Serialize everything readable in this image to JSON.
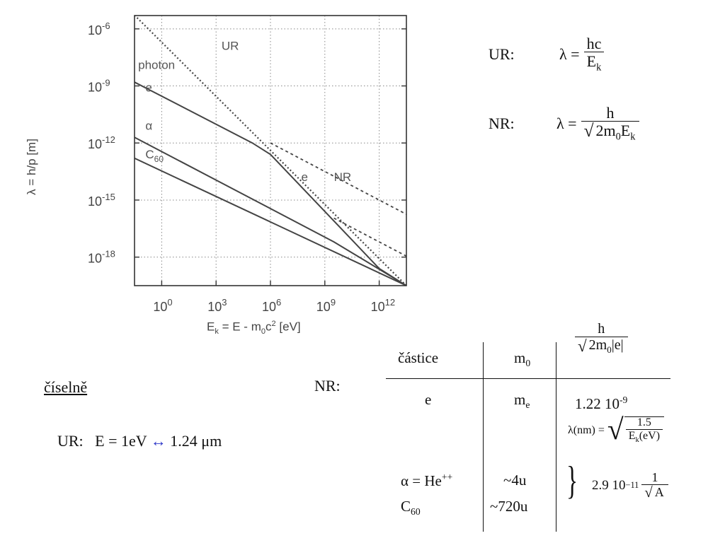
{
  "chart_data": {
    "type": "line",
    "xlabel": "E",
    "xlabel_sub": "k",
    "xlabel_rest": " = E - m",
    "xlabel_sub2": "0",
    "xlabel_tail": "c",
    "xlabel_sup": "2",
    "xlabel_unit": " [eV]",
    "ylabel": "λ = h/p [m]",
    "x_scale": "log",
    "y_scale": "log",
    "xlim_exp": [
      -1.5,
      13.5
    ],
    "ylim_exp": [
      -19.5,
      -5.3
    ],
    "grid": true,
    "x_tick_exponents": [
      "0",
      "3",
      "6",
      "9",
      "12"
    ],
    "x_tick_base": "10",
    "y_tick_exponents": [
      "-6",
      "-9",
      "-12",
      "-15",
      "-18"
    ],
    "y_tick_base": "10",
    "series": [
      {
        "name": "UR",
        "style": "dotted",
        "points": [
          [
            -1.5,
            -5.28
          ],
          [
            13.5,
            -19.5
          ]
        ]
      },
      {
        "name": "e",
        "style": "solid",
        "points": [
          [
            -1.5,
            -8.8
          ],
          [
            5,
            -12.0
          ],
          [
            6,
            -12.6
          ],
          [
            9,
            -15.6
          ],
          [
            12,
            -18.6
          ],
          [
            13.5,
            -19.5
          ]
        ]
      },
      {
        "name": "e NR",
        "style": "dashed",
        "points": [
          [
            6,
            -12.0
          ],
          [
            13.5,
            -15.75
          ]
        ]
      },
      {
        "name": "α",
        "style": "solid",
        "points": [
          [
            -1.5,
            -11.7
          ],
          [
            9.5,
            -17.2
          ],
          [
            13.5,
            -19.5
          ]
        ]
      },
      {
        "name": "α NR",
        "style": "dashed",
        "points": [
          [
            9.5,
            -15.95
          ],
          [
            13.5,
            -17.95
          ]
        ]
      },
      {
        "name": "C60",
        "style": "solid",
        "points": [
          [
            -1.5,
            -12.8
          ],
          [
            13.5,
            -19.5
          ]
        ]
      }
    ],
    "annotations": [
      {
        "text": "UR",
        "x": 3.3,
        "y": -7.1
      },
      {
        "text": "photon",
        "x": -1.3,
        "y": -8.1
      },
      {
        "text": "e",
        "x": -0.9,
        "y": -9.3
      },
      {
        "text": "α",
        "x": -0.9,
        "y": -11.3
      },
      {
        "text": "C",
        "sub": "60",
        "x": -0.9,
        "y": -12.8
      },
      {
        "text": "e",
        "x": 7.7,
        "y": -14.0
      },
      {
        "text": "NR",
        "x": 9.5,
        "y": -14.0
      }
    ]
  },
  "formulas": {
    "ur_label": "UR:",
    "ur_lhs": "λ =",
    "ur_num": "hc",
    "ur_den": "E",
    "ur_den_sub": "k",
    "nr_label": "NR:",
    "nr_lhs": "λ =",
    "nr_num": "h",
    "nr_den_a": "2m",
    "nr_den_sub": "0",
    "nr_den_b": "E",
    "nr_den_sub2": "k"
  },
  "numeric": {
    "heading": "číselně",
    "ur_text": "UR:   E = 1eV",
    "arrow": "↔",
    "value": "1.24 μm",
    "nr_label": "NR:"
  },
  "table": {
    "col1_header": "částice",
    "col2_header": "m",
    "col2_header_sub": "0",
    "col3_num": "h",
    "col3_den_a": "2m",
    "col3_den_sub": "0",
    "col3_den_b": "|e|",
    "row_e_name": "e",
    "row_e_mass": "m",
    "row_e_mass_sub": "e",
    "row_e_value": "1.22 10",
    "row_e_value_sup": "-9",
    "lambda_lhs": "λ(nm) =",
    "lambda_num": "1.5",
    "lambda_den": "E",
    "lambda_den_sub": "k",
    "lambda_den_unit": "(eV)",
    "row_alpha_name": "α = He",
    "row_alpha_sup": "++",
    "row_alpha_mass": "~4u",
    "row_c60_name": "C",
    "row_c60_sub": "60",
    "row_c60_mass": "~720u",
    "brace": "}",
    "heavy_value": "2.9  10",
    "heavy_value_sup": "−11",
    "heavy_num": "1",
    "heavy_den": "A"
  }
}
